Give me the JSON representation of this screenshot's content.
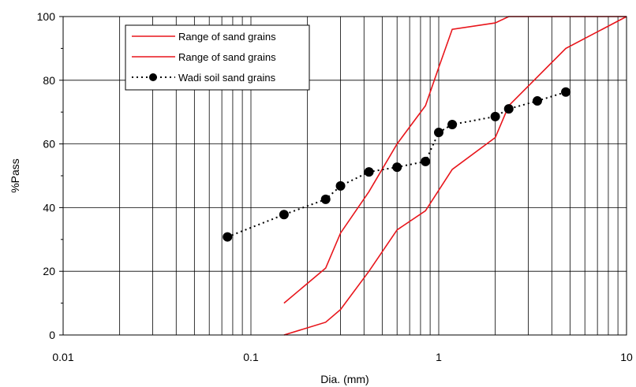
{
  "chart_data": {
    "type": "line",
    "title": "",
    "xlabel": "Dia. (mm)",
    "ylabel": "%Pass",
    "xscale": "log",
    "xlim": [
      0.01,
      10
    ],
    "ylim": [
      0,
      100
    ],
    "x_tick_labels": [
      "0.01",
      "0.1",
      "1",
      "10"
    ],
    "y_tick_labels": [
      "0",
      "20",
      "40",
      "60",
      "80",
      "100"
    ],
    "grid": true,
    "legend_position": "top-left",
    "series": [
      {
        "name": "Range of sand grains",
        "color": "#e8151b",
        "style": "solid",
        "marker": "none",
        "x": [
          0.15,
          0.25,
          0.3,
          0.425,
          0.6,
          0.85,
          1.0,
          1.18,
          2.0,
          2.36,
          4.75,
          10
        ],
        "y": [
          10,
          21,
          32,
          45,
          60,
          72,
          84,
          96,
          98,
          100,
          100,
          100
        ]
      },
      {
        "name": "Range of sand grains",
        "color": "#e8151b",
        "style": "solid",
        "marker": "none",
        "x": [
          0.15,
          0.25,
          0.3,
          0.425,
          0.6,
          0.85,
          1.18,
          2.0,
          2.36,
          4.75,
          10
        ],
        "y": [
          0,
          4,
          8,
          20,
          33,
          39,
          52,
          62,
          72,
          90,
          100
        ]
      },
      {
        "name": "Wadi soil sand grains",
        "color": "#000000",
        "style": "dotted",
        "marker": "circle",
        "x": [
          0.075,
          0.15,
          0.25,
          0.3,
          0.425,
          0.6,
          0.85,
          1.0,
          1.18,
          2.0,
          2.36,
          3.35,
          4.75
        ],
        "y": [
          30.8,
          37.8,
          42.6,
          46.8,
          51.2,
          52.7,
          54.5,
          63.6,
          66.1,
          68.6,
          71.0,
          73.5,
          76.3
        ]
      }
    ]
  }
}
